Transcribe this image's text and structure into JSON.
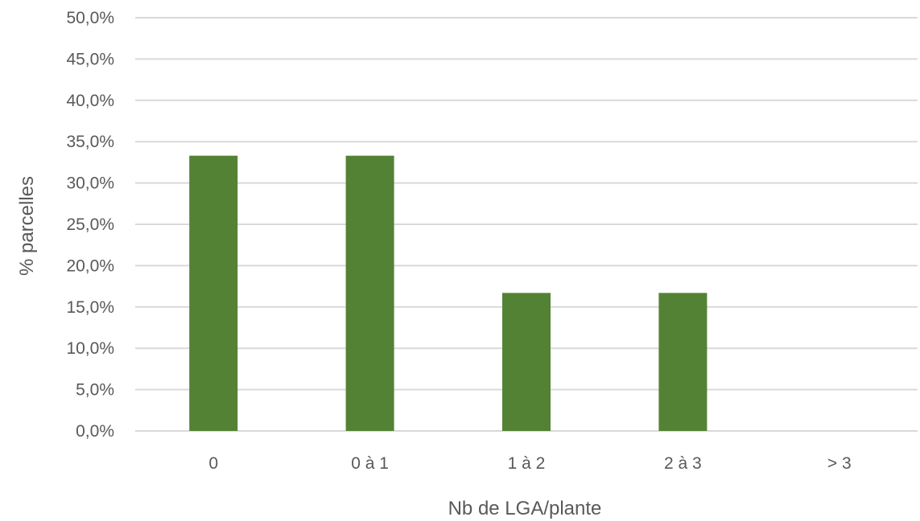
{
  "chart_data": {
    "type": "bar",
    "title": "",
    "xlabel": "Nb de LGA/plante",
    "ylabel": "% parcelles",
    "categories": [
      "0",
      "0 à 1",
      "1 à 2",
      "2 à 3",
      "> 3"
    ],
    "values": [
      33.3,
      33.3,
      16.7,
      16.7,
      0
    ],
    "ylim": [
      0,
      50
    ],
    "ytick_step": 5,
    "ytick_format": "percent-one-decimal-comma",
    "y_ticks": [
      "0,0%",
      "5,0%",
      "10,0%",
      "15,0%",
      "20,0%",
      "25,0%",
      "30,0%",
      "35,0%",
      "40,0%",
      "45,0%",
      "50,0%"
    ],
    "grid": true,
    "legend": "none",
    "colors": {
      "bar": "#548235",
      "grid": "#d9d9d9",
      "text": "#595959"
    }
  }
}
